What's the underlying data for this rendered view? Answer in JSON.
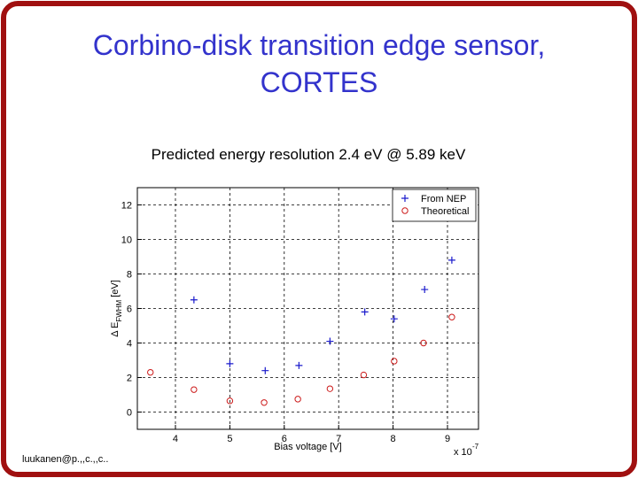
{
  "slide_title_lines": [
    "Corbino-disk transition edge sensor,",
    "CORTES"
  ],
  "footer": "luukanen@p.,,c.,,c..",
  "chart_data": {
    "type": "scatter",
    "title": "Predicted energy resolution 2.4 eV @ 5.89 keV",
    "xlabel": "Bias voltage [V]",
    "x_multiplier": "x 10",
    "x_multiplier_exp": "-7",
    "ylabel": "Δ E",
    "ylabel_sub": "FWHM",
    "ylabel_unit": "[eV]",
    "xlim": [
      3.3,
      9.57
    ],
    "xticks": [
      4,
      5,
      6,
      7,
      8,
      9
    ],
    "ylim": [
      -1,
      13
    ],
    "yticks": [
      0,
      2,
      4,
      6,
      8,
      10,
      12
    ],
    "grid": true,
    "legend": "upper right",
    "series": [
      {
        "name": "From NEP",
        "color": "#1a1acc",
        "marker": "plus",
        "x": [
          4.34,
          5.0,
          5.65,
          6.27,
          6.84,
          7.48,
          8.02,
          8.58,
          9.08
        ],
        "values": [
          6.5,
          2.8,
          2.4,
          2.7,
          4.1,
          5.8,
          5.4,
          7.1,
          8.8
        ]
      },
      {
        "name": "Theoretical",
        "color": "#cc1a1a",
        "marker": "circle",
        "x": [
          3.54,
          4.34,
          5.0,
          5.63,
          6.25,
          6.84,
          7.46,
          8.02,
          8.56,
          9.08
        ],
        "values": [
          2.3,
          1.3,
          0.65,
          0.55,
          0.75,
          1.35,
          2.15,
          2.95,
          4.0,
          5.5
        ]
      }
    ]
  }
}
